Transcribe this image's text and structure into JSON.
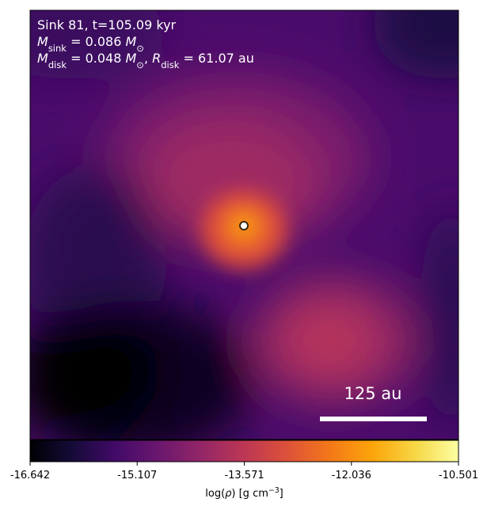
{
  "chart_data": {
    "type": "heatmap",
    "annotations": [
      [
        {
          "text": "Sink 81, t=105.09 kyr"
        }
      ],
      [
        {
          "text": "M"
        },
        {
          "text": "sink",
          "sub": true
        },
        {
          "text": " = 0.086 "
        },
        {
          "text": "M"
        },
        {
          "text": "⊙",
          "sub": true
        }
      ],
      [
        {
          "text": "M"
        },
        {
          "text": "disk",
          "sub": true
        },
        {
          "text": " = 0.048 "
        },
        {
          "text": "M"
        },
        {
          "text": "⊙",
          "sub": true
        },
        {
          "text": ", "
        },
        {
          "text": "R"
        },
        {
          "text": "disk",
          "sub": true
        },
        {
          "text": " = 61.07 au"
        }
      ]
    ],
    "scale_bar_label": "125 au",
    "colorbar_label": [
      {
        "text": "log("
      },
      {
        "text": "ρ"
      },
      {
        "text": ") [g cm"
      },
      {
        "text": "−3",
        "sup": true
      },
      {
        "text": "]"
      }
    ],
    "clim": [
      -16.642,
      -10.501
    ],
    "cticks": [
      -16.642,
      -15.107,
      -13.571,
      -12.036,
      -10.501
    ],
    "colormap": [
      "#000004",
      "#160b39",
      "#420a68",
      "#6a176e",
      "#932667",
      "#bc3754",
      "#dd513a",
      "#f37819",
      "#fca50a",
      "#f6d746",
      "#fcffa4"
    ]
  }
}
